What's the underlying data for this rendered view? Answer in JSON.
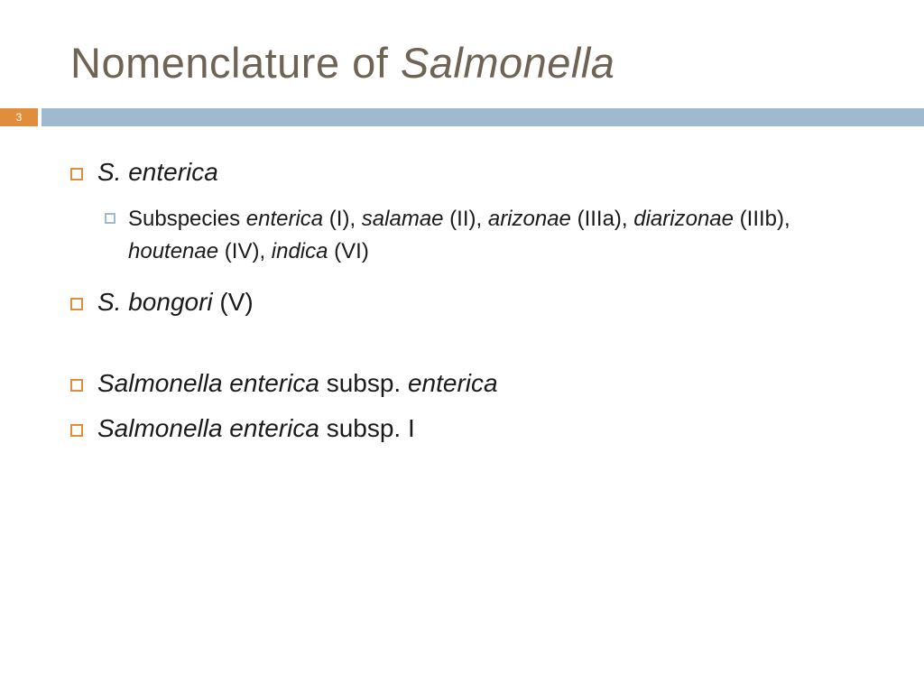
{
  "colors": {
    "title_text": "#6f6354",
    "body_text": "#1a1a1a",
    "accent_orange": "#e08e3b",
    "accent_blue": "#9fb9cf",
    "background": "#ffffff"
  },
  "typography": {
    "title_fontsize": 47,
    "l1_fontsize": 28,
    "l2_fontsize": 24,
    "page_badge_fontsize": 12,
    "title_weight": 300
  },
  "page_number": "3",
  "title": {
    "prefix": "Nomenclature of ",
    "italic": "Salmonella"
  },
  "bullets": [
    {
      "level": 1,
      "runs": [
        {
          "text": "S. enterica",
          "italic": true
        }
      ],
      "gap_after": false
    },
    {
      "level": 2,
      "runs": [
        {
          "text": "Subspecies ",
          "italic": false
        },
        {
          "text": "enterica",
          "italic": true
        },
        {
          "text": " (I), ",
          "italic": false
        },
        {
          "text": "salamae",
          "italic": true
        },
        {
          "text": " (II), ",
          "italic": false
        },
        {
          "text": "arizonae",
          "italic": true
        },
        {
          "text": " (IIIa), ",
          "italic": false
        },
        {
          "text": "diarizonae",
          "italic": true
        },
        {
          "text": " (IIIb), ",
          "italic": false
        },
        {
          "text": "houtenae",
          "italic": true
        },
        {
          "text": " (IV), ",
          "italic": false
        },
        {
          "text": "indica",
          "italic": true
        },
        {
          "text": " (VI)",
          "italic": false
        }
      ],
      "gap_after": false
    },
    {
      "level": 1,
      "runs": [
        {
          "text": "S. bongori",
          "italic": true
        },
        {
          "text": " (V)",
          "italic": false
        }
      ],
      "gap_after": true
    },
    {
      "level": 1,
      "runs": [
        {
          "text": "Salmonella enterica",
          "italic": true
        },
        {
          "text": " subsp. ",
          "italic": false
        },
        {
          "text": "enterica",
          "italic": true
        }
      ],
      "gap_after": false
    },
    {
      "level": 1,
      "runs": [
        {
          "text": "Salmonella enterica",
          "italic": true
        },
        {
          "text": " subsp. I",
          "italic": false
        }
      ],
      "gap_after": false
    }
  ]
}
